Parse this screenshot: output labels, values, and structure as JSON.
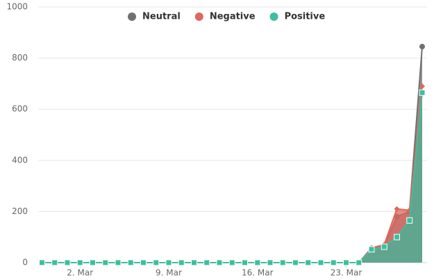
{
  "chart_data": {
    "type": "area",
    "categories": [
      null,
      null,
      null,
      "2. Mar",
      null,
      null,
      null,
      null,
      null,
      null,
      "9. Mar",
      null,
      null,
      null,
      null,
      null,
      null,
      "16. Mar",
      null,
      null,
      null,
      null,
      null,
      null,
      "23. Mar",
      null,
      null,
      null,
      null,
      null,
      null
    ],
    "series": [
      {
        "name": "Neutral",
        "color": "#707070",
        "marker": "circle",
        "values": [
          0,
          0,
          0,
          0,
          0,
          0,
          0,
          0,
          0,
          0,
          0,
          0,
          0,
          0,
          0,
          0,
          0,
          0,
          0,
          0,
          0,
          0,
          0,
          0,
          0,
          0,
          55,
          65,
          180,
          200,
          845
        ]
      },
      {
        "name": "Negative",
        "color": "#e0675d",
        "marker": "diamond",
        "values": [
          0,
          0,
          0,
          0,
          0,
          0,
          0,
          0,
          0,
          0,
          0,
          0,
          0,
          0,
          0,
          0,
          0,
          0,
          0,
          0,
          0,
          0,
          0,
          0,
          0,
          0,
          58,
          70,
          210,
          205,
          690
        ]
      },
      {
        "name": "Positive",
        "color": "#3dbea0",
        "marker": "square",
        "values": [
          0,
          0,
          0,
          0,
          0,
          0,
          0,
          0,
          0,
          0,
          0,
          0,
          0,
          0,
          0,
          0,
          0,
          0,
          0,
          0,
          0,
          0,
          0,
          0,
          0,
          0,
          52,
          62,
          100,
          165,
          665
        ]
      }
    ],
    "ylim": [
      0,
      1000
    ],
    "yticks": [
      0,
      200,
      400,
      600,
      800,
      1000
    ],
    "grid": true,
    "legend": "top"
  }
}
